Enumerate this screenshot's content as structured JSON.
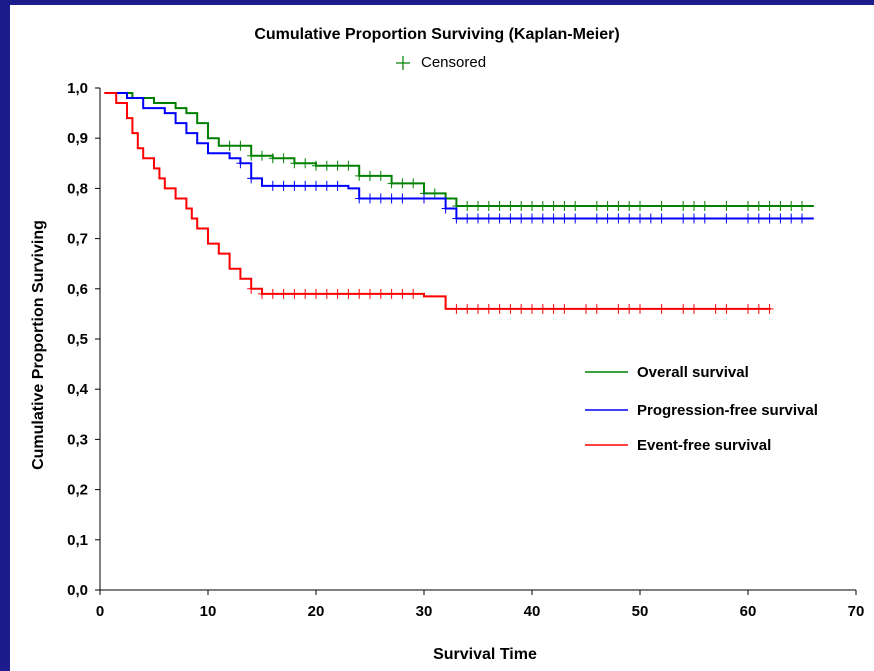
{
  "chart_data": {
    "type": "line",
    "title": "Cumulative Proportion Surviving (Kaplan-Meier)",
    "censored_label": "Censored",
    "xlabel": "Survival Time",
    "ylabel": "Cumulative Proportion Surviving",
    "xlim": [
      0,
      70
    ],
    "ylim": [
      0,
      1
    ],
    "x_ticks": [
      "0",
      "10",
      "20",
      "30",
      "40",
      "50",
      "60",
      "70"
    ],
    "y_ticks": [
      "0,0",
      "0,1",
      "0,2",
      "0,3",
      "0,4",
      "0,5",
      "0,6",
      "0,7",
      "0,8",
      "0,9",
      "1,0"
    ],
    "grid": false,
    "legend_position": "right",
    "series": [
      {
        "name": "Overall survival",
        "color": "#008000",
        "x": [
          0.5,
          3,
          5,
          7,
          8,
          9,
          10,
          11,
          14,
          16,
          18,
          20,
          24,
          27,
          30,
          32,
          33,
          66
        ],
        "y": [
          0.99,
          0.98,
          0.97,
          0.96,
          0.95,
          0.93,
          0.9,
          0.885,
          0.865,
          0.86,
          0.85,
          0.845,
          0.825,
          0.81,
          0.79,
          0.78,
          0.765,
          0.765
        ],
        "censored_x": [
          12,
          13,
          14,
          15,
          16,
          17,
          18,
          19,
          20,
          21,
          22,
          23,
          24,
          25,
          26,
          27,
          28,
          29,
          30,
          31,
          32,
          33,
          34,
          35,
          36,
          37,
          38,
          39,
          40,
          41,
          42,
          43,
          44,
          46,
          47,
          48,
          49,
          50,
          52,
          54,
          55,
          56,
          58,
          60,
          61,
          62,
          63,
          64,
          65
        ]
      },
      {
        "name": "Progression-free survival",
        "color": "#0000ff",
        "x": [
          0.5,
          2.5,
          4,
          6,
          7,
          8,
          9,
          10,
          12,
          13,
          14,
          15,
          23,
          24,
          32,
          33,
          66
        ],
        "y": [
          0.99,
          0.98,
          0.96,
          0.95,
          0.93,
          0.91,
          0.89,
          0.87,
          0.86,
          0.85,
          0.82,
          0.805,
          0.8,
          0.78,
          0.76,
          0.74,
          0.74
        ],
        "censored_x": [
          13,
          14,
          16,
          17,
          18,
          19,
          20,
          21,
          22,
          24,
          25,
          26,
          27,
          28,
          30,
          32,
          33,
          34,
          35,
          36,
          37,
          38,
          39,
          40,
          41,
          42,
          43,
          44,
          46,
          47,
          48,
          49,
          50,
          51,
          52,
          54,
          55,
          56,
          58,
          60,
          61,
          62,
          63,
          64,
          65
        ]
      },
      {
        "name": "Event-free survival",
        "color": "#ff0000",
        "x": [
          0.5,
          1.5,
          2.5,
          3,
          3.5,
          4,
          5,
          5.5,
          6,
          7,
          8,
          8.5,
          9,
          10,
          11,
          12,
          13,
          14,
          15,
          30,
          32,
          62
        ],
        "y": [
          0.99,
          0.97,
          0.94,
          0.91,
          0.88,
          0.86,
          0.84,
          0.82,
          0.8,
          0.78,
          0.76,
          0.74,
          0.72,
          0.69,
          0.67,
          0.64,
          0.62,
          0.6,
          0.59,
          0.585,
          0.56,
          0.56
        ],
        "censored_x": [
          14,
          15,
          16,
          17,
          18,
          19,
          20,
          21,
          22,
          23,
          24,
          25,
          26,
          27,
          28,
          29,
          33,
          34,
          35,
          36,
          37,
          38,
          39,
          40,
          41,
          42,
          43,
          45,
          46,
          48,
          49,
          50,
          52,
          54,
          55,
          57,
          58,
          60,
          61,
          62
        ]
      }
    ]
  }
}
